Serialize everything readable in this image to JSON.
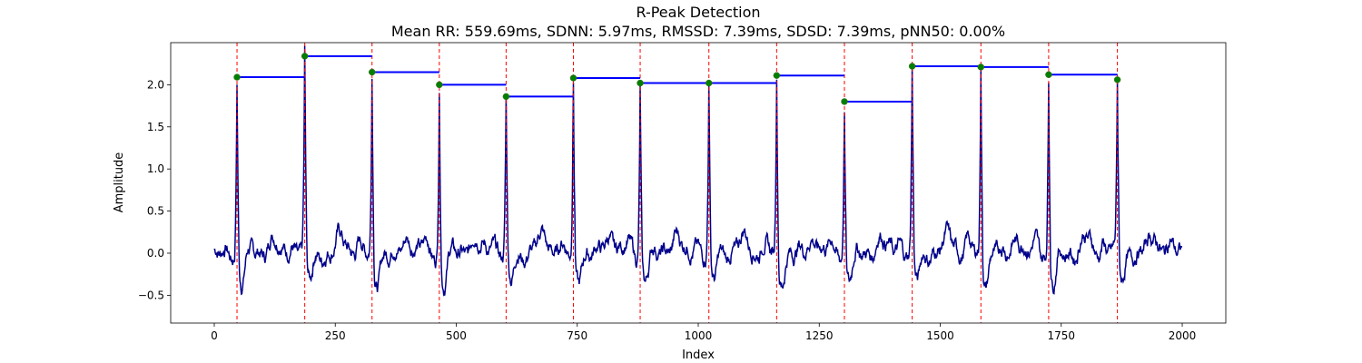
{
  "chart_data": {
    "type": "line",
    "title": "R-Peak Detection",
    "subtitle": "Mean RR: 559.69ms, SDNN: 5.97ms, RMSSD: 7.39ms, SDSD: 7.39ms, pNN50: 0.00%",
    "xlabel": "Index",
    "ylabel": "Amplitude",
    "xlim": [
      -90,
      2090
    ],
    "ylim": [
      -0.83,
      2.5
    ],
    "xticks": [
      0,
      250,
      500,
      750,
      1000,
      1250,
      1500,
      1750,
      2000
    ],
    "yticks": [
      -0.5,
      0.0,
      0.5,
      1.0,
      1.5,
      2.0
    ],
    "xtick_labels": [
      "0",
      "250",
      "500",
      "750",
      "1000",
      "1250",
      "1500",
      "1750",
      "2000"
    ],
    "ytick_labels": [
      "−0.5",
      "0.0",
      "0.5",
      "1.0",
      "1.5",
      "2.0"
    ],
    "grid": false,
    "signal_length": 2000,
    "r_peaks": [
      {
        "x": 47,
        "y": 2.09
      },
      {
        "x": 187,
        "y": 2.34
      },
      {
        "x": 326,
        "y": 2.15
      },
      {
        "x": 465,
        "y": 2.0
      },
      {
        "x": 603,
        "y": 1.86
      },
      {
        "x": 742,
        "y": 2.08
      },
      {
        "x": 880,
        "y": 2.02
      },
      {
        "x": 1022,
        "y": 2.02
      },
      {
        "x": 1162,
        "y": 2.11
      },
      {
        "x": 1302,
        "y": 1.8
      },
      {
        "x": 1442,
        "y": 2.22
      },
      {
        "x": 1584,
        "y": 2.21
      },
      {
        "x": 1724,
        "y": 2.12
      },
      {
        "x": 1866,
        "y": 2.06
      }
    ],
    "colors": {
      "signal": "#00008b",
      "peak_line": "#ff0000",
      "peak_marker": "#008000",
      "rr_interval": "#0000ff"
    }
  }
}
